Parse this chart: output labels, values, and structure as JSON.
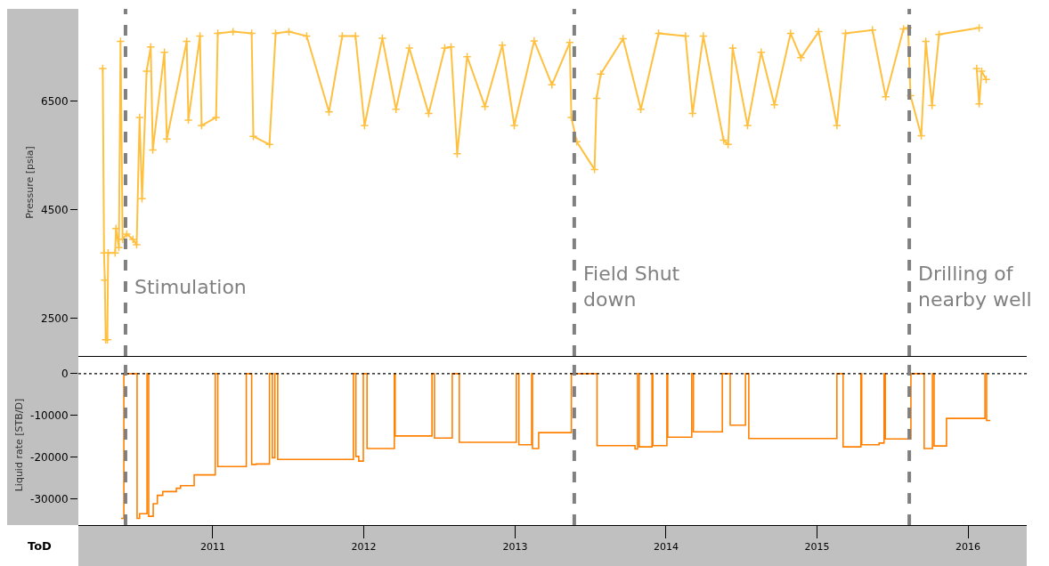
{
  "chart_data": [
    {
      "type": "line",
      "ylabel": "Pressure [psia]",
      "marker": "cross",
      "grid": false,
      "tick_labels": "y",
      "xlim": [
        "2010-02-10",
        "2016-05-22"
      ],
      "xticks": [
        "2011",
        "2012",
        "2013",
        "2014",
        "2015",
        "2016"
      ],
      "ylim": [
        1800,
        8200
      ],
      "yticks": [
        2500,
        4500,
        6500
      ],
      "series": [
        {
          "color": "#ffc040",
          "x": [
            "2010-04-10",
            "2010-04-13",
            "2010-04-15",
            "2010-04-17",
            "2010-04-21",
            "2010-04-23",
            "2010-05-10",
            "2010-05-12",
            "2010-05-19",
            "2010-05-23",
            "2010-05-28",
            "2010-06-07",
            "2010-06-22",
            "2010-07-01",
            "2010-07-08",
            "2010-07-14",
            "2010-07-25",
            "2010-08-04",
            "2010-08-09",
            "2010-09-06",
            "2010-09-12",
            "2010-10-30",
            "2010-11-03",
            "2010-12-01",
            "2010-12-05",
            "2011-01-09",
            "2011-01-13",
            "2011-02-19",
            "2011-04-05",
            "2011-04-09",
            "2011-05-18",
            "2011-06-02",
            "2011-07-04",
            "2011-08-16",
            "2011-10-09",
            "2011-11-10",
            "2011-12-12",
            "2012-01-03",
            "2012-02-15",
            "2012-03-19",
            "2012-04-20",
            "2012-06-06",
            "2012-07-15",
            "2012-07-30",
            "2012-08-14",
            "2012-09-07",
            "2012-10-20",
            "2012-12-01",
            "2012-12-30",
            "2013-02-16",
            "2013-03-31",
            "2013-05-13",
            "2013-05-17",
            "2013-05-30",
            "2013-07-12",
            "2013-07-17",
            "2013-07-27",
            "2013-09-19",
            "2013-11-01",
            "2013-12-14",
            "2014-02-17",
            "2014-03-06",
            "2014-04-01",
            "2014-05-20",
            "2014-05-31",
            "2014-06-11",
            "2014-07-17",
            "2014-08-19",
            "2014-09-20",
            "2014-10-29",
            "2014-11-23",
            "2015-01-05",
            "2015-02-18",
            "2015-03-11",
            "2015-05-15",
            "2015-06-16",
            "2015-07-29",
            "2015-08-09",
            "2015-08-15",
            "2015-09-10",
            "2015-09-21",
            "2015-10-06",
            "2015-10-23",
            "2016-01-28",
            "2016-01-25",
            "2016-01-22",
            "2016-01-28",
            "2016-02-03",
            "2016-02-14"
          ],
          "values": [
            7100,
            3700,
            3200,
            2100,
            2100,
            3700,
            3700,
            4150,
            3800,
            7600,
            3950,
            4050,
            3950,
            3850,
            6200,
            4700,
            7050,
            7500,
            5600,
            7400,
            5800,
            7600,
            6150,
            7700,
            6050,
            6200,
            7750,
            7780,
            7750,
            5850,
            5700,
            7750,
            7780,
            7700,
            6300,
            7700,
            7700,
            6050,
            7660,
            6350,
            7480,
            6270,
            7480,
            7500,
            5530,
            7320,
            6400,
            7530,
            6050,
            7610,
            6800,
            7580,
            6200,
            5750,
            5240,
            6550,
            7000,
            7650,
            6350,
            7750,
            7700,
            6270,
            7700,
            5780,
            5700,
            7480,
            6050,
            7400,
            6430,
            7750,
            7300,
            7780,
            6050,
            7750,
            7810,
            6580,
            7830,
            7850,
            6600,
            5860,
            7600,
            6420,
            7730,
            7850,
            null,
            7100,
            6450,
            7050,
            6900
          ]
        }
      ],
      "ref_lines": [
        {
          "axis": "x",
          "value": "2010-06-04",
          "label": "Stimulation",
          "color": "#808080",
          "line_style": "dashed"
        },
        {
          "axis": "x",
          "value": "2013-05-24",
          "label": "Field Shut\ndown",
          "color": "#808080",
          "line_style": "dashed"
        },
        {
          "axis": "x",
          "value": "2015-08-12",
          "label": "Drilling of\nnearby well",
          "color": "#808080",
          "line_style": "dashed"
        }
      ]
    },
    {
      "type": "step",
      "ylabel": "Liquid rate [STB/D]",
      "xlabel": "ToD",
      "grid": false,
      "xlim": [
        "2010-02-10",
        "2016-05-22"
      ],
      "xticks": [
        "2011",
        "2012",
        "2013",
        "2014",
        "2015",
        "2016"
      ],
      "ylim": [
        -36200,
        2100
      ],
      "yticks": [
        -30000,
        -20000,
        -10000,
        0
      ],
      "series": [
        {
          "color": "#ff8000",
          "x": [
            "2010-05-24",
            "2010-05-31",
            "2010-07-02",
            "2010-07-08",
            "2010-07-26",
            "2010-07-30",
            "2010-08-10",
            "2010-08-20",
            "2010-09-02",
            "2010-10-05",
            "2010-10-15",
            "2010-11-17",
            "2011-01-07",
            "2011-01-13",
            "2011-03-23",
            "2011-04-05",
            "2011-04-16",
            "2011-05-18",
            "2011-05-25",
            "2011-05-31",
            "2011-06-07",
            "2011-12-07",
            "2011-12-13",
            "2011-12-20",
            "2011-12-31",
            "2012-01-09",
            "2012-03-15",
            "2012-03-17",
            "2012-06-14",
            "2012-06-20",
            "2012-08-02",
            "2012-08-19",
            "2013-01-04",
            "2013-01-10",
            "2013-02-10",
            "2013-02-12",
            "2013-02-27",
            "2013-05-17",
            "2013-07-18",
            "2013-10-18",
            "2013-10-24",
            "2013-10-28",
            "2013-11-28",
            "2013-11-30",
            "2014-01-03",
            "2014-01-05",
            "2014-03-04",
            "2014-03-08",
            "2014-05-17",
            "2014-06-05",
            "2014-07-12",
            "2014-07-20",
            "2015-02-18",
            "2015-03-05",
            "2015-04-17",
            "2015-04-19",
            "2015-05-31",
            "2015-06-12",
            "2015-06-15",
            "2015-08-16",
            "2015-09-17",
            "2015-10-07",
            "2015-10-11",
            "2015-11-10",
            "2016-02-11",
            "2016-02-15",
            "2016-02-24"
          ],
          "values": [
            -34600,
            0,
            -34600,
            -33500,
            0,
            -34100,
            -31100,
            -29100,
            -28200,
            -27400,
            -26800,
            -24200,
            0,
            -22200,
            0,
            -21700,
            -21600,
            0,
            -20100,
            0,
            -20500,
            0,
            -19800,
            -20900,
            0,
            -17900,
            0,
            -14900,
            0,
            -15400,
            0,
            -16400,
            0,
            -17000,
            0,
            -17900,
            -14100,
            0,
            -17200,
            -18000,
            0,
            -17500,
            0,
            -17200,
            0,
            -15200,
            0,
            -13900,
            0,
            -12300,
            0,
            -15500,
            0,
            -17500,
            0,
            -17000,
            -16600,
            0,
            -15600,
            0,
            -17900,
            0,
            -17300,
            -10700,
            0,
            -11200,
            -11200
          ]
        }
      ],
      "ref_lines": [
        {
          "axis": "y",
          "value": 0,
          "color": "#000000",
          "line_style": "dotted"
        },
        {
          "axis": "x",
          "value": "2010-06-04",
          "color": "#808080",
          "line_style": "dashed"
        },
        {
          "axis": "x",
          "value": "2013-05-24",
          "color": "#808080",
          "line_style": "dashed"
        },
        {
          "axis": "x",
          "value": "2015-08-12",
          "color": "#808080",
          "line_style": "dashed"
        }
      ]
    }
  ]
}
